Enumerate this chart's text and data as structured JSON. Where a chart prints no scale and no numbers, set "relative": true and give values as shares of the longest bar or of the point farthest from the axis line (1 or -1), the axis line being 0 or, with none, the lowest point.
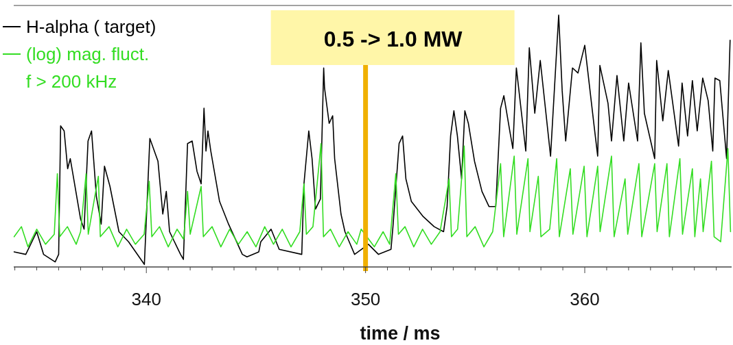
{
  "chart_data": {
    "type": "line",
    "xlabel": "time / ms",
    "relative": true,
    "legend": "top left",
    "grid": false,
    "marker": "none",
    "line_style": "solid",
    "xlim": [
      333.95,
      366.7
    ],
    "xticks": [
      {
        "value": 334,
        "label": null
      },
      {
        "value": 335,
        "label": null
      },
      {
        "value": 336,
        "label": null
      },
      {
        "value": 337,
        "label": null
      },
      {
        "value": 338,
        "label": null
      },
      {
        "value": 339,
        "label": null
      },
      340,
      {
        "value": 341,
        "label": null
      },
      {
        "value": 342,
        "label": null
      },
      {
        "value": 343,
        "label": null
      },
      {
        "value": 344,
        "label": null
      },
      {
        "value": 345,
        "label": null
      },
      {
        "value": 346,
        "label": null
      },
      {
        "value": 347,
        "label": null
      },
      {
        "value": 348,
        "label": null
      },
      {
        "value": 349,
        "label": null
      },
      350,
      {
        "value": 351,
        "label": null
      },
      {
        "value": 352,
        "label": null
      },
      {
        "value": 353,
        "label": null
      },
      {
        "value": 354,
        "label": null
      },
      {
        "value": 355,
        "label": null
      },
      {
        "value": 356,
        "label": null
      },
      {
        "value": 357,
        "label": null
      },
      {
        "value": 358,
        "label": null
      },
      {
        "value": 359,
        "label": null
      },
      360,
      {
        "value": 361,
        "label": null
      },
      {
        "value": 362,
        "label": null
      },
      {
        "value": 363,
        "label": null
      },
      {
        "value": 364,
        "label": null
      },
      {
        "value": 365,
        "label": null
      },
      {
        "value": 366,
        "label": null
      }
    ],
    "ref_lines": [
      {
        "axis": "x",
        "value": 350,
        "label": "0.5 -> 1.0 MW",
        "color": "#f0b000"
      }
    ],
    "series": [
      {
        "name": "H-alpha ( target)",
        "color": "#000000",
        "x": [
          333.97,
          334.5,
          335.0,
          335.31,
          335.84,
          336.0,
          336.09,
          336.25,
          336.41,
          336.53,
          337.0,
          337.16,
          337.34,
          337.5,
          337.72,
          337.94,
          338.09,
          338.34,
          338.75,
          339.19,
          339.91,
          340.16,
          340.53,
          340.75,
          340.91,
          341.06,
          341.56,
          341.69,
          341.88,
          342.09,
          342.31,
          342.5,
          342.63,
          342.72,
          342.81,
          342.94,
          343.34,
          343.75,
          344.38,
          344.59,
          345.13,
          345.22,
          345.69,
          346.06,
          347.09,
          347.19,
          347.41,
          347.56,
          347.72,
          347.94,
          348.09,
          348.13,
          348.34,
          348.5,
          348.59,
          348.88,
          349.06,
          349.5,
          350.13,
          350.59,
          351.16,
          351.25,
          351.53,
          351.69,
          351.84,
          352.09,
          352.63,
          353.13,
          353.56,
          353.72,
          353.88,
          354.03,
          354.19,
          354.38,
          354.53,
          354.69,
          354.97,
          355.31,
          355.63,
          355.94,
          356.16,
          356.31,
          356.56,
          356.72,
          356.88,
          357.31,
          357.47,
          357.72,
          357.97,
          358.44,
          358.81,
          358.97,
          359.13,
          359.44,
          359.69,
          360.0,
          360.44,
          360.59,
          360.69,
          361.06,
          361.22,
          361.47,
          361.78,
          362.0,
          362.41,
          362.56,
          362.72,
          363.19,
          363.28,
          363.56,
          363.81,
          364.28,
          364.44,
          364.69,
          364.91,
          365.13,
          365.38,
          365.63,
          365.84,
          365.94,
          366.16,
          366.47,
          366.63
        ],
        "values": [
          0.06,
          0.05,
          0.14,
          0.05,
          0.02,
          0.05,
          0.56,
          0.54,
          0.39,
          0.43,
          0.19,
          0.15,
          0.5,
          0.54,
          0.28,
          0.17,
          0.4,
          0.32,
          0.14,
          0.1,
          0.01,
          0.51,
          0.42,
          0.21,
          0.3,
          0.14,
          0.05,
          0.03,
          0.49,
          0.5,
          0.38,
          0.33,
          0.63,
          0.46,
          0.54,
          0.46,
          0.26,
          0.17,
          0.05,
          0.04,
          0.06,
          0.1,
          0.15,
          0.07,
          0.05,
          0.33,
          0.54,
          0.43,
          0.23,
          0.27,
          0.79,
          0.71,
          0.57,
          0.6,
          0.43,
          0.21,
          0.14,
          0.05,
          0.09,
          0.05,
          0.07,
          0.16,
          0.49,
          0.52,
          0.35,
          0.26,
          0.2,
          0.16,
          0.14,
          0.24,
          0.52,
          0.62,
          0.52,
          0.35,
          0.62,
          0.57,
          0.42,
          0.3,
          0.24,
          0.24,
          0.63,
          0.68,
          0.55,
          0.47,
          0.79,
          0.46,
          0.87,
          0.61,
          0.82,
          0.44,
          1.0,
          0.7,
          0.5,
          0.79,
          0.77,
          0.88,
          0.55,
          0.44,
          0.8,
          0.65,
          0.5,
          0.76,
          0.5,
          0.73,
          0.5,
          0.89,
          0.61,
          0.43,
          0.82,
          0.58,
          0.78,
          0.48,
          0.73,
          0.52,
          0.74,
          0.54,
          0.75,
          0.66,
          0.46,
          0.75,
          0.74,
          0.43,
          0.9
        ]
      },
      {
        "name": "(log) mag. fluct.\nf > 200 kHz",
        "color": "#33dd22",
        "x": [
          333.97,
          334.3,
          334.6,
          335.0,
          335.4,
          335.8,
          335.94,
          336.05,
          336.4,
          336.8,
          337.0,
          337.25,
          337.35,
          337.81,
          337.9,
          338.3,
          338.7,
          339.1,
          339.5,
          339.9,
          340.13,
          340.25,
          340.6,
          341.0,
          341.4,
          341.7,
          341.88,
          342.0,
          342.5,
          342.6,
          343.0,
          343.4,
          343.8,
          344.2,
          344.6,
          345.0,
          345.4,
          345.8,
          346.2,
          346.6,
          347.0,
          347.19,
          347.3,
          347.6,
          347.97,
          348.08,
          348.4,
          348.8,
          349.2,
          349.6,
          349.8,
          350.4,
          350.8,
          351.1,
          351.38,
          351.5,
          351.8,
          352.2,
          352.6,
          353.0,
          353.4,
          353.81,
          353.92,
          354.2,
          354.5,
          354.62,
          355.0,
          355.4,
          355.8,
          356.16,
          356.3,
          356.78,
          356.9,
          357.41,
          357.5,
          357.88,
          358.0,
          358.4,
          358.72,
          358.84,
          359.34,
          359.46,
          359.97,
          360.1,
          360.59,
          360.7,
          361.22,
          361.34,
          361.84,
          361.96,
          362.47,
          362.6,
          363.19,
          363.3,
          363.75,
          363.86,
          364.34,
          364.46,
          364.91,
          365.02,
          365.28,
          365.4,
          365.78,
          365.9,
          366.2,
          366.53,
          366.65
        ],
        "values": [
          0.12,
          0.16,
          0.08,
          0.15,
          0.09,
          0.13,
          0.37,
          0.12,
          0.16,
          0.09,
          0.14,
          0.37,
          0.13,
          0.36,
          0.12,
          0.16,
          0.08,
          0.15,
          0.09,
          0.13,
          0.34,
          0.12,
          0.16,
          0.08,
          0.15,
          0.11,
          0.3,
          0.13,
          0.32,
          0.12,
          0.16,
          0.08,
          0.15,
          0.09,
          0.14,
          0.08,
          0.16,
          0.09,
          0.15,
          0.08,
          0.14,
          0.33,
          0.13,
          0.16,
          0.49,
          0.12,
          0.15,
          0.08,
          0.14,
          0.09,
          0.15,
          0.08,
          0.14,
          0.09,
          0.37,
          0.13,
          0.16,
          0.08,
          0.15,
          0.09,
          0.14,
          0.35,
          0.12,
          0.15,
          0.48,
          0.12,
          0.16,
          0.08,
          0.14,
          0.41,
          0.12,
          0.44,
          0.13,
          0.43,
          0.14,
          0.36,
          0.12,
          0.15,
          0.43,
          0.12,
          0.39,
          0.13,
          0.4,
          0.12,
          0.4,
          0.14,
          0.44,
          0.12,
          0.35,
          0.13,
          0.41,
          0.12,
          0.41,
          0.14,
          0.41,
          0.12,
          0.43,
          0.13,
          0.39,
          0.12,
          0.35,
          0.14,
          0.42,
          0.12,
          0.1,
          0.47,
          0.14
        ]
      }
    ]
  }
}
